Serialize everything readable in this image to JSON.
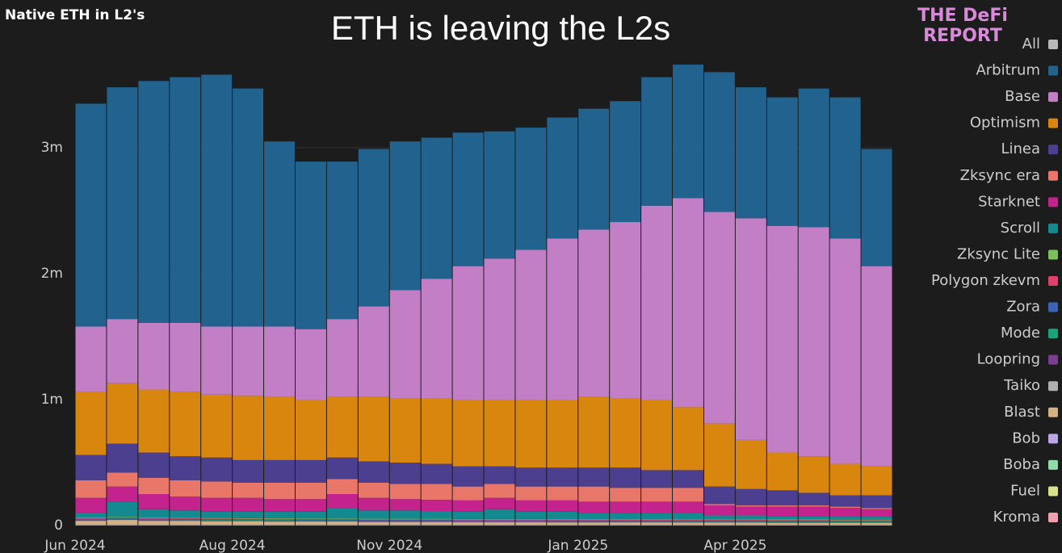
{
  "chart_data": {
    "type": "stacked_bar",
    "title": "ETH is leaving the L2s",
    "subtitle": "Native ETH in L2's",
    "logo_top": "THE DeFi",
    "logo_bottom": "REPORT",
    "legend_all": {
      "name": "All",
      "color": "#b8b8b8"
    },
    "categories": [
      "Jun 2024",
      null,
      null,
      null,
      null,
      "Aug 2024",
      null,
      null,
      null,
      null,
      "Nov 2024",
      null,
      null,
      null,
      null,
      null,
      "Jan 2025",
      null,
      null,
      null,
      null,
      "Apr 2025",
      null,
      null,
      null,
      null
    ],
    "ylim": [
      0,
      3750000
    ],
    "yticks": [
      0,
      {
        "value": 1000000,
        "label": "1m"
      },
      {
        "value": 2000000,
        "label": "2m"
      },
      {
        "value": 3000000,
        "label": "3m"
      }
    ],
    "grid": true,
    "legend": "right",
    "series": [
      {
        "name": "Arbitrum",
        "color": "#21628f",
        "values": [
          1770000,
          1840000,
          1920000,
          1950000,
          2000000,
          1890000,
          1470000,
          1330000,
          1250000,
          1250000,
          1180000,
          1120000,
          1060000,
          1010000,
          970000,
          960000,
          960000,
          960000,
          1020000,
          1060000,
          1110000,
          1040000,
          1020000,
          1100000,
          1120000,
          930000
        ]
      },
      {
        "name": "Base",
        "color": "#c27fc6",
        "values": [
          520000,
          510000,
          530000,
          550000,
          540000,
          550000,
          560000,
          560000,
          620000,
          720000,
          860000,
          950000,
          1060000,
          1120000,
          1190000,
          1280000,
          1330000,
          1400000,
          1540000,
          1660000,
          1680000,
          1760000,
          1800000,
          1820000,
          1790000,
          1590000
        ]
      },
      {
        "name": "Optimism",
        "color": "#d9860f",
        "values": [
          500000,
          480000,
          500000,
          510000,
          500000,
          510000,
          500000,
          480000,
          480000,
          510000,
          510000,
          520000,
          530000,
          530000,
          540000,
          540000,
          560000,
          550000,
          560000,
          500000,
          500000,
          390000,
          300000,
          290000,
          250000,
          230000
        ]
      },
      {
        "name": "Linea",
        "color": "#4d3f8f",
        "values": [
          200000,
          230000,
          200000,
          190000,
          190000,
          180000,
          180000,
          180000,
          170000,
          170000,
          170000,
          160000,
          160000,
          140000,
          150000,
          150000,
          150000,
          160000,
          140000,
          140000,
          140000,
          130000,
          120000,
          100000,
          90000,
          100000
        ]
      },
      {
        "name": "Zksync era",
        "color": "#e8776a",
        "values": [
          140000,
          110000,
          130000,
          130000,
          130000,
          120000,
          130000,
          130000,
          120000,
          120000,
          120000,
          125000,
          110000,
          110000,
          110000,
          110000,
          120000,
          110000,
          110000,
          110000,
          10000,
          10000,
          10000,
          10000,
          10000,
          10000
        ]
      },
      {
        "name": "Starknet",
        "color": "#c4228c",
        "values": [
          120000,
          120000,
          120000,
          110000,
          110000,
          110000,
          100000,
          100000,
          110000,
          100000,
          90000,
          90000,
          90000,
          90000,
          90000,
          90000,
          90000,
          90000,
          90000,
          90000,
          80000,
          70000,
          75000,
          75000,
          70000,
          60000
        ]
      },
      {
        "name": "Scroll",
        "color": "#138a8f",
        "values": [
          36000,
          121000,
          66000,
          58000,
          50000,
          51000,
          52000,
          54000,
          84000,
          66000,
          66000,
          61000,
          58000,
          78000,
          58000,
          59000,
          49000,
          50000,
          50000,
          51000,
          31000,
          31000,
          27000,
          27000,
          23000,
          23000
        ]
      },
      {
        "name": "Zksync Lite",
        "color": "#7cc05a",
        "values": [
          5000,
          5000,
          5000,
          5000,
          5000,
          5000,
          5000,
          5000,
          5000,
          5000,
          5000,
          5000,
          5000,
          5000,
          5000,
          5000,
          5000,
          5000,
          5000,
          5000,
          5000,
          5000,
          5000,
          5000,
          5000,
          5000
        ]
      },
      {
        "name": "Polygon zkevm",
        "color": "#e0406a",
        "values": [
          5000,
          5000,
          5000,
          5000,
          5000,
          5000,
          5000,
          5000,
          5000,
          5000,
          5000,
          5000,
          5000,
          5000,
          5000,
          5000,
          5000,
          5000,
          5000,
          5000,
          5000,
          5000,
          5000,
          5000,
          5000,
          5000
        ]
      },
      {
        "name": "Zora",
        "color": "#3b63b5",
        "values": [
          5000,
          5000,
          5000,
          5000,
          5000,
          5000,
          5000,
          5000,
          5000,
          5000,
          5000,
          5000,
          5000,
          5000,
          5000,
          5000,
          5000,
          5000,
          5000,
          5000,
          5000,
          5000,
          5000,
          5000,
          5000,
          5000
        ]
      },
      {
        "name": "Mode",
        "color": "#19a37a",
        "values": [
          5000,
          5000,
          5000,
          5000,
          5000,
          5000,
          5000,
          5000,
          5000,
          5000,
          5000,
          5000,
          5000,
          5000,
          5000,
          5000,
          5000,
          5000,
          5000,
          5000,
          5000,
          5000,
          5000,
          5000,
          5000,
          5000
        ]
      },
      {
        "name": "Loopring",
        "color": "#7a3d8f",
        "values": [
          4000,
          4000,
          4000,
          4000,
          4000,
          4000,
          4000,
          4000,
          4000,
          4000,
          4000,
          4000,
          4000,
          4000,
          4000,
          4000,
          4000,
          4000,
          4000,
          4000,
          4000,
          4000,
          4000,
          4000,
          4000,
          4000
        ]
      },
      {
        "name": "Taiko",
        "color": "#b0b0b0",
        "values": [
          3000,
          3000,
          3000,
          3000,
          3000,
          3000,
          3000,
          3000,
          3000,
          3000,
          3000,
          3000,
          3000,
          3000,
          3000,
          3000,
          3000,
          3000,
          3000,
          3000,
          3000,
          3000,
          3000,
          3000,
          3000,
          3000
        ]
      },
      {
        "name": "Blast",
        "color": "#d4b083",
        "values": [
          30000,
          35000,
          30000,
          28000,
          26000,
          25000,
          24000,
          22000,
          22000,
          20000,
          20000,
          20000,
          18000,
          18000,
          18000,
          17000,
          17000,
          16000,
          16000,
          15000,
          15000,
          15000,
          14000,
          14000,
          13000,
          13000
        ]
      },
      {
        "name": "Bob",
        "color": "#b9a6e6",
        "values": [
          2000,
          2000,
          2000,
          2000,
          2000,
          2000,
          2000,
          2000,
          2000,
          2000,
          2000,
          2000,
          2000,
          2000,
          2000,
          2000,
          2000,
          2000,
          2000,
          2000,
          2000,
          2000,
          2000,
          2000,
          2000,
          2000
        ]
      },
      {
        "name": "Boba",
        "color": "#8fdca8",
        "values": [
          2000,
          2000,
          2000,
          2000,
          2000,
          2000,
          2000,
          2000,
          2000,
          2000,
          2000,
          2000,
          2000,
          2000,
          2000,
          2000,
          2000,
          2000,
          2000,
          2000,
          2000,
          2000,
          2000,
          2000,
          2000,
          2000
        ]
      },
      {
        "name": "Fuel",
        "color": "#d8e08a",
        "values": [
          1000,
          1000,
          1000,
          1000,
          1000,
          1000,
          1000,
          1000,
          1000,
          1000,
          1000,
          1000,
          1000,
          1000,
          1000,
          1000,
          1000,
          1000,
          1000,
          1000,
          1000,
          1000,
          1000,
          1000,
          1000,
          1000
        ]
      },
      {
        "name": "Kroma",
        "color": "#f2a0b0",
        "values": [
          2000,
          2000,
          2000,
          2000,
          2000,
          2000,
          2000,
          2000,
          2000,
          2000,
          2000,
          2000,
          2000,
          2000,
          2000,
          2000,
          2000,
          2000,
          2000,
          2000,
          2000,
          2000,
          2000,
          2000,
          2000,
          2000
        ]
      }
    ]
  }
}
